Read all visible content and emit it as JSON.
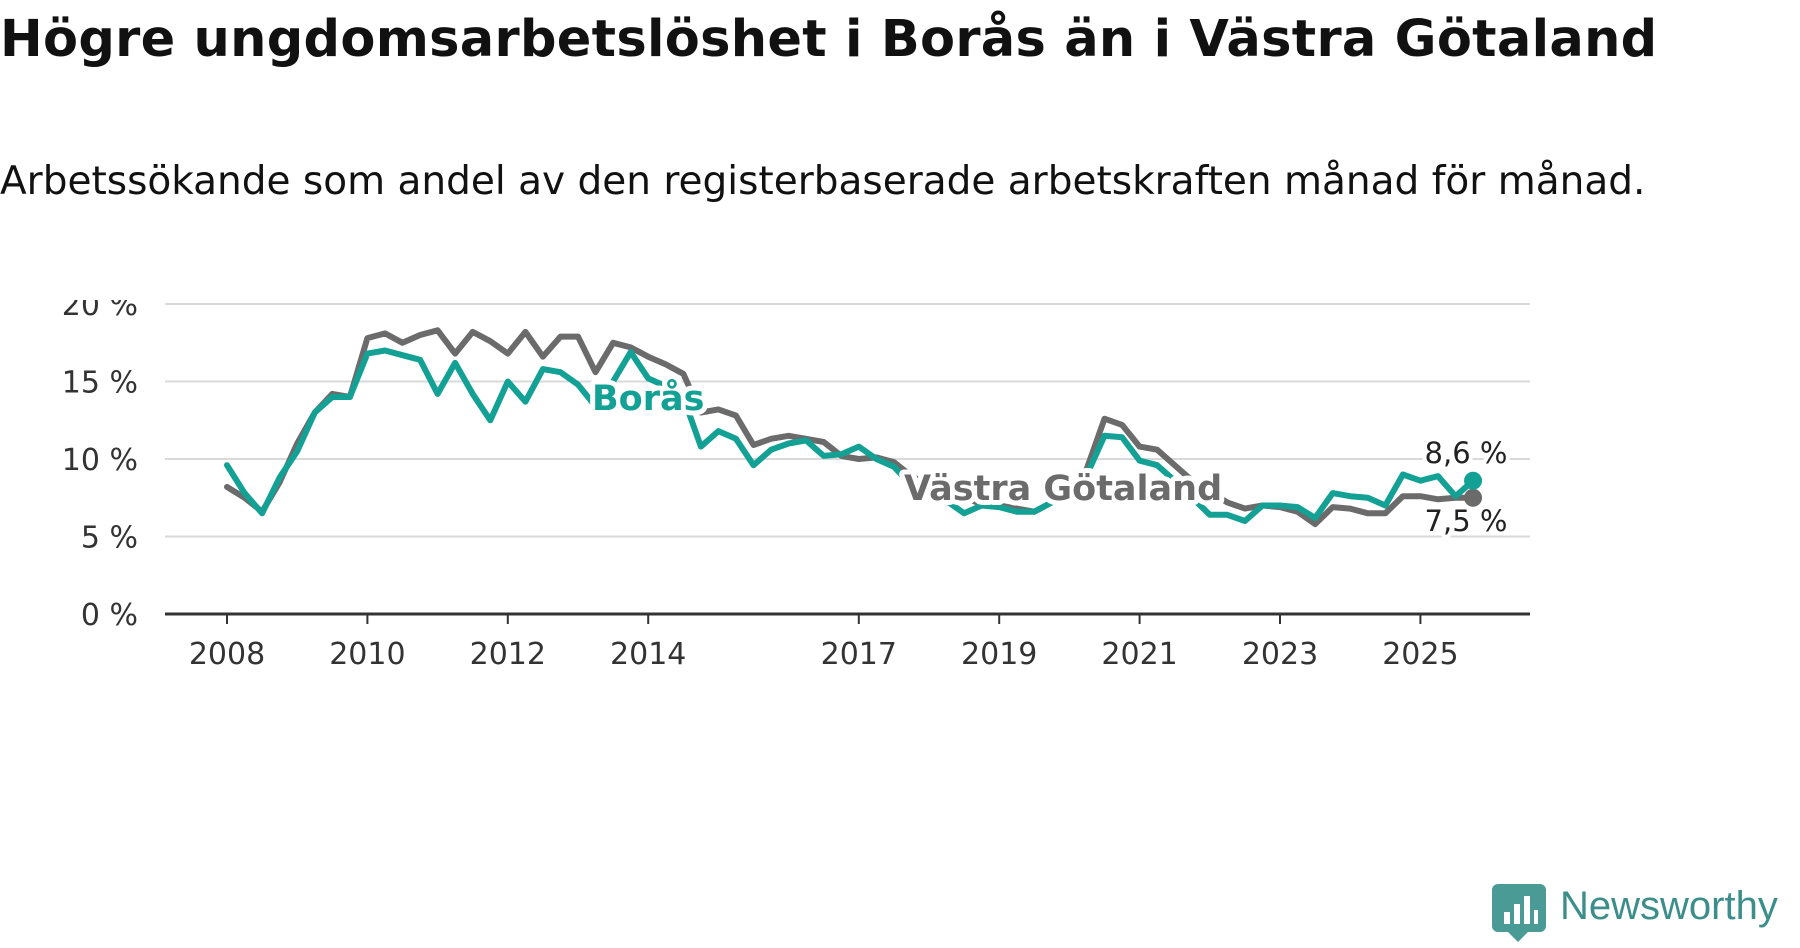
{
  "header": {
    "title": "Högre ungdomsarbetslöshet i Borås än i Västra Götaland",
    "subtitle": "Arbetssökande som andel av den registerbaserade arbetskraften månad för månad."
  },
  "branding": {
    "name": "Newsworthy",
    "icon": "newsworthy-logo-icon"
  },
  "colors": {
    "boras": "#14a195",
    "vg": "#6b6b6b",
    "grid": "#d9d9d9",
    "axis": "#333333"
  },
  "chart_data": {
    "type": "line",
    "title": "Högre ungdomsarbetslöshet i Borås än i Västra Götaland",
    "subtitle": "Arbetssökande som andel av den registerbaserade arbetskraften månad för månad.",
    "xlabel": "",
    "ylabel": "",
    "ylim": [
      0,
      20
    ],
    "xlim": [
      2008.0,
      2026.0
    ],
    "yticks": [
      0,
      5,
      10,
      15,
      20
    ],
    "ytick_labels": [
      "0 %",
      "5 %",
      "10 %",
      "15 %",
      "20 %"
    ],
    "xticks": [
      2008,
      2010,
      2012,
      2014,
      2017,
      2019,
      2021,
      2023,
      2025
    ],
    "xtick_labels": [
      "2008",
      "2010",
      "2012",
      "2014",
      "2017",
      "2019",
      "2021",
      "2023",
      "2025"
    ],
    "grid": true,
    "series": [
      {
        "name": "Västra Götaland",
        "label": "Västra Götaland",
        "end_label": "7,5 %",
        "points": [
          [
            2008.0,
            8.2
          ],
          [
            2008.25,
            7.5
          ],
          [
            2008.5,
            6.6
          ],
          [
            2008.75,
            8.5
          ],
          [
            2009.0,
            11.0
          ],
          [
            2009.25,
            13.0
          ],
          [
            2009.5,
            14.2
          ],
          [
            2009.75,
            14.0
          ],
          [
            2010.0,
            17.8
          ],
          [
            2010.25,
            18.1
          ],
          [
            2010.5,
            17.5
          ],
          [
            2010.75,
            18.0
          ],
          [
            2011.0,
            18.3
          ],
          [
            2011.25,
            16.8
          ],
          [
            2011.5,
            18.2
          ],
          [
            2011.75,
            17.6
          ],
          [
            2012.0,
            16.8
          ],
          [
            2012.25,
            18.2
          ],
          [
            2012.5,
            16.6
          ],
          [
            2012.75,
            17.9
          ],
          [
            2013.0,
            17.9
          ],
          [
            2013.25,
            15.6
          ],
          [
            2013.5,
            17.5
          ],
          [
            2013.75,
            17.2
          ],
          [
            2014.0,
            16.6
          ],
          [
            2014.25,
            16.1
          ],
          [
            2014.5,
            15.5
          ],
          [
            2014.75,
            13.0
          ],
          [
            2015.0,
            13.2
          ],
          [
            2015.25,
            12.8
          ],
          [
            2015.5,
            10.9
          ],
          [
            2015.75,
            11.3
          ],
          [
            2016.0,
            11.5
          ],
          [
            2016.25,
            11.3
          ],
          [
            2016.5,
            11.1
          ],
          [
            2016.75,
            10.2
          ],
          [
            2017.0,
            10.0
          ],
          [
            2017.25,
            10.1
          ],
          [
            2017.5,
            9.8
          ],
          [
            2017.75,
            8.9
          ],
          [
            2018.0,
            8.3
          ],
          [
            2018.25,
            7.7
          ],
          [
            2018.5,
            7.5
          ],
          [
            2018.75,
            7.1
          ],
          [
            2019.0,
            7.0
          ],
          [
            2019.25,
            6.8
          ],
          [
            2019.5,
            6.6
          ],
          [
            2019.75,
            7.2
          ],
          [
            2020.0,
            7.6
          ],
          [
            2020.25,
            9.4
          ],
          [
            2020.5,
            12.6
          ],
          [
            2020.75,
            12.2
          ],
          [
            2021.0,
            10.8
          ],
          [
            2021.25,
            10.6
          ],
          [
            2021.5,
            9.6
          ],
          [
            2021.75,
            8.6
          ],
          [
            2022.0,
            7.9
          ],
          [
            2022.25,
            7.2
          ],
          [
            2022.5,
            6.8
          ],
          [
            2022.75,
            7.0
          ],
          [
            2023.0,
            6.9
          ],
          [
            2023.25,
            6.6
          ],
          [
            2023.5,
            5.8
          ],
          [
            2023.75,
            6.9
          ],
          [
            2024.0,
            6.8
          ],
          [
            2024.25,
            6.5
          ],
          [
            2024.5,
            6.5
          ],
          [
            2024.75,
            7.6
          ],
          [
            2025.0,
            7.6
          ],
          [
            2025.25,
            7.4
          ],
          [
            2025.5,
            7.5
          ],
          [
            2025.75,
            7.5
          ]
        ]
      },
      {
        "name": "Borås",
        "label": "Borås",
        "end_label": "8,6 %",
        "points": [
          [
            2008.0,
            9.6
          ],
          [
            2008.25,
            7.8
          ],
          [
            2008.5,
            6.5
          ],
          [
            2008.75,
            8.8
          ],
          [
            2009.0,
            10.5
          ],
          [
            2009.25,
            13.0
          ],
          [
            2009.5,
            14.0
          ],
          [
            2009.75,
            14.0
          ],
          [
            2010.0,
            16.8
          ],
          [
            2010.25,
            17.0
          ],
          [
            2010.5,
            16.7
          ],
          [
            2010.75,
            16.4
          ],
          [
            2011.0,
            14.2
          ],
          [
            2011.25,
            16.2
          ],
          [
            2011.5,
            14.2
          ],
          [
            2011.75,
            12.5
          ],
          [
            2012.0,
            15.0
          ],
          [
            2012.25,
            13.7
          ],
          [
            2012.5,
            15.8
          ],
          [
            2012.75,
            15.6
          ],
          [
            2013.0,
            14.8
          ],
          [
            2013.25,
            13.4
          ],
          [
            2013.5,
            15.0
          ],
          [
            2013.75,
            16.9
          ],
          [
            2014.0,
            15.2
          ],
          [
            2014.25,
            14.7
          ],
          [
            2014.5,
            14.0
          ],
          [
            2014.75,
            10.8
          ],
          [
            2015.0,
            11.8
          ],
          [
            2015.25,
            11.3
          ],
          [
            2015.5,
            9.6
          ],
          [
            2015.75,
            10.6
          ],
          [
            2016.0,
            11.0
          ],
          [
            2016.25,
            11.2
          ],
          [
            2016.5,
            10.2
          ],
          [
            2016.75,
            10.3
          ],
          [
            2017.0,
            10.8
          ],
          [
            2017.25,
            10.0
          ],
          [
            2017.5,
            9.5
          ],
          [
            2017.75,
            8.3
          ],
          [
            2018.0,
            7.6
          ],
          [
            2018.25,
            7.3
          ],
          [
            2018.5,
            6.5
          ],
          [
            2018.75,
            7.0
          ],
          [
            2019.0,
            6.9
          ],
          [
            2019.25,
            6.6
          ],
          [
            2019.5,
            6.6
          ],
          [
            2019.75,
            7.2
          ],
          [
            2020.0,
            7.5
          ],
          [
            2020.25,
            9.0
          ],
          [
            2020.5,
            11.5
          ],
          [
            2020.75,
            11.4
          ],
          [
            2021.0,
            9.9
          ],
          [
            2021.25,
            9.6
          ],
          [
            2021.5,
            8.6
          ],
          [
            2021.75,
            7.5
          ],
          [
            2022.0,
            6.4
          ],
          [
            2022.25,
            6.4
          ],
          [
            2022.5,
            6.0
          ],
          [
            2022.75,
            7.0
          ],
          [
            2023.0,
            7.0
          ],
          [
            2023.25,
            6.9
          ],
          [
            2023.5,
            6.2
          ],
          [
            2023.75,
            7.8
          ],
          [
            2024.0,
            7.6
          ],
          [
            2024.25,
            7.5
          ],
          [
            2024.5,
            7.0
          ],
          [
            2024.75,
            9.0
          ],
          [
            2025.0,
            8.6
          ],
          [
            2025.25,
            8.9
          ],
          [
            2025.5,
            7.6
          ],
          [
            2025.75,
            8.6
          ]
        ]
      }
    ]
  }
}
